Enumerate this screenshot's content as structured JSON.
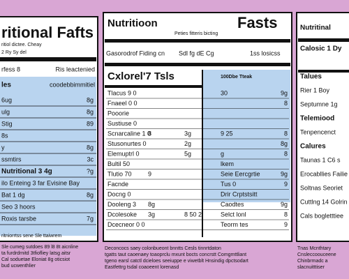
{
  "panels": [
    {
      "title": "ritional Fafts",
      "subtitle": [
        "ritiol dictee. Cheay",
        "2 Ry Sy del"
      ],
      "header": [
        "rfess 8",
        "Ris leactenied"
      ],
      "section": [
        "les",
        "coodebbimmitiel"
      ],
      "rows": [
        [
          "6ug",
          "8g"
        ],
        [
          "ulg",
          "8g"
        ],
        [
          "Stig",
          "89"
        ],
        [
          "8s",
          ""
        ],
        [
          "y",
          "8g"
        ],
        [
          "ssmtirs",
          "3c"
        ],
        [
          "Nutritional 3 4g",
          "?g"
        ],
        [
          "ilo Enteing 3 far Evisine Bay",
          ""
        ],
        [
          "Bat 1 dg",
          "8g"
        ],
        [
          "Seo 3 hoors",
          ""
        ],
        [
          "Roxis tarsbe",
          "7g"
        ]
      ],
      "note": "ritniorrtss sene Sle ttaiwrem",
      "footer": [
        "Sle cumeg sutdoes 89 l8 8t aicnline",
        "ta furdrdrnitd 3tfiofliey latsg aitsr",
        "Cal soduetae Eloniat 8g oticsiot",
        "bud ucwenthlier"
      ]
    },
    {
      "title": "Nutritioon",
      "title2": "Fasts",
      "subtitle": "Peties fitteris bicting",
      "header": [
        "Gasorodrof Fiding cn",
        "Sdl fg dE Cg",
        "1ss losicss"
      ],
      "section": "Cxlorel'7 Tsls",
      "section2": "100Dbe Tteak",
      "rows": [
        [
          "Tlacus 9 0",
          "",
          "",
          "30",
          "9g"
        ],
        [
          "Fnaeel 0 0",
          "",
          "",
          "",
          "8"
        ],
        [
          "Pooorie",
          "",
          "",
          "",
          ""
        ],
        [
          "Sustiuse 0",
          "",
          "",
          "",
          ""
        ],
        [
          "Scnarcaline 1 0",
          "8",
          "3g",
          "9 25",
          "8"
        ],
        [
          "Stusonurtes 0",
          "",
          "2g",
          "",
          "8g"
        ],
        [
          "Elemuptrl 0",
          "",
          "5g",
          "g",
          "8"
        ],
        [
          "Bultil 50",
          "",
          "",
          "lkem",
          ""
        ],
        [
          "Tlutio 70",
          "9",
          "",
          "Seie Eercgrtie",
          "9g"
        ],
        [
          "Facnde",
          "",
          "",
          "Tus 0",
          "9"
        ],
        [
          "Docng 0",
          "",
          "",
          "Drir Crptstsitt",
          ""
        ],
        [
          "Dooleng 3",
          "8g",
          "",
          "Caodtes",
          "9g"
        ],
        [
          "Dcolesoke",
          "3g",
          "8 50 2",
          "Selct lonl",
          "8"
        ],
        [
          "Dcecneor 0 0",
          "",
          "",
          "Teorm tes",
          "9"
        ]
      ],
      "footer": [
        "Deconcocs saey colonbueont bnntts Cesls tinnrtdaton",
        "tgatts taut caoenaey toaoprclu mxunt bocts concrstt Comgmttliant",
        "tgeno earsl catctl dcieloes seeiuppe e viwetblt Hnsindig dpctsodart",
        "Eastfettrg tsdal coaoeent lorenasd"
      ]
    },
    {
      "title": "Nutritinal",
      "rows": [
        "Calosic 1 Dy",
        "",
        "Talues",
        "Rier 1 Boy",
        "Septumne 1g",
        "Telemiood",
        "Tenpencenct",
        "Calures",
        "Taunas 1 C6 s",
        "Erocabllies Failie",
        "Soltnas Seoriet",
        "Cuttlng 14 Golrin",
        "Cals bogletttiee"
      ],
      "bold": [
        0,
        2,
        5,
        7
      ],
      "footer": [
        "Tnas Mcnthtary",
        "Cnsleccoouceene",
        "Chinbrmadc a",
        "slacnuitttiser"
      ]
    }
  ]
}
